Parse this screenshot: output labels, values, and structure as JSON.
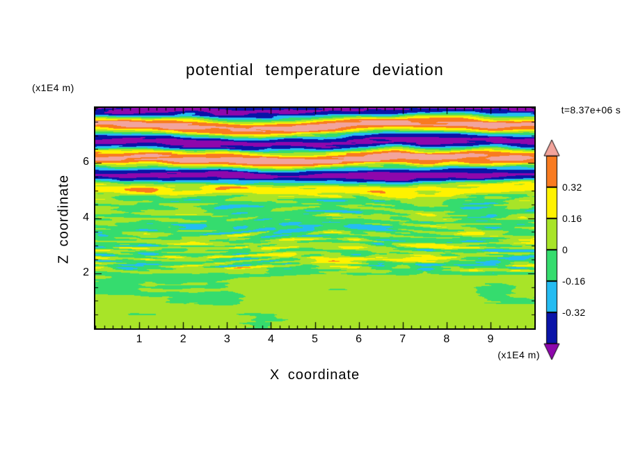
{
  "chart_data": {
    "type": "heatmap",
    "title": "potential temperature deviation",
    "timestamp": "t=8.37e+06 s",
    "xlabel": "X coordinate",
    "zlabel": "Z coordinate",
    "x_unit": "(x1E4 m)",
    "z_unit": "(x1E4 m)",
    "x_range": [
      0,
      10
    ],
    "z_range": [
      0,
      8
    ],
    "x_ticks": [
      1,
      2,
      3,
      4,
      5,
      6,
      7,
      8,
      9
    ],
    "z_ticks": [
      2,
      4,
      6
    ],
    "colorbar": {
      "labels": [
        "0.32",
        "0.16",
        "0",
        "-0.16",
        "-0.32"
      ],
      "levels": [
        0.48,
        0.32,
        0.16,
        0,
        -0.16,
        -0.32,
        -0.48
      ],
      "segment_colors_top_to_bottom": [
        "#F97B20",
        "#FFF200",
        "#A8E428",
        "#35DC6E",
        "#25BCF2",
        "#0A14A8"
      ],
      "arrow_top_color": "#F2A49C",
      "arrow_bottom_color": "#8E07AC"
    },
    "field_layers": {
      "lower": {
        "z_max": 2,
        "amplitude": 0.08,
        "description": "smooth weak deviations near zero: yellow-green and green blobs"
      },
      "middle": {
        "z_min": 2,
        "z_max": 5,
        "amplitude": 0.45,
        "description": "turbulent thin horizontal streaks (yellow/orange/green/cyan/navy), strongest near z=2.6"
      },
      "upper": {
        "z_min": 5,
        "z_max": 8,
        "amplitude": 0.55,
        "band_wavelength": 1.18,
        "description": "alternating strong positive (pink) and negative (purple) horizontal wave bands with speckled edges"
      }
    }
  }
}
